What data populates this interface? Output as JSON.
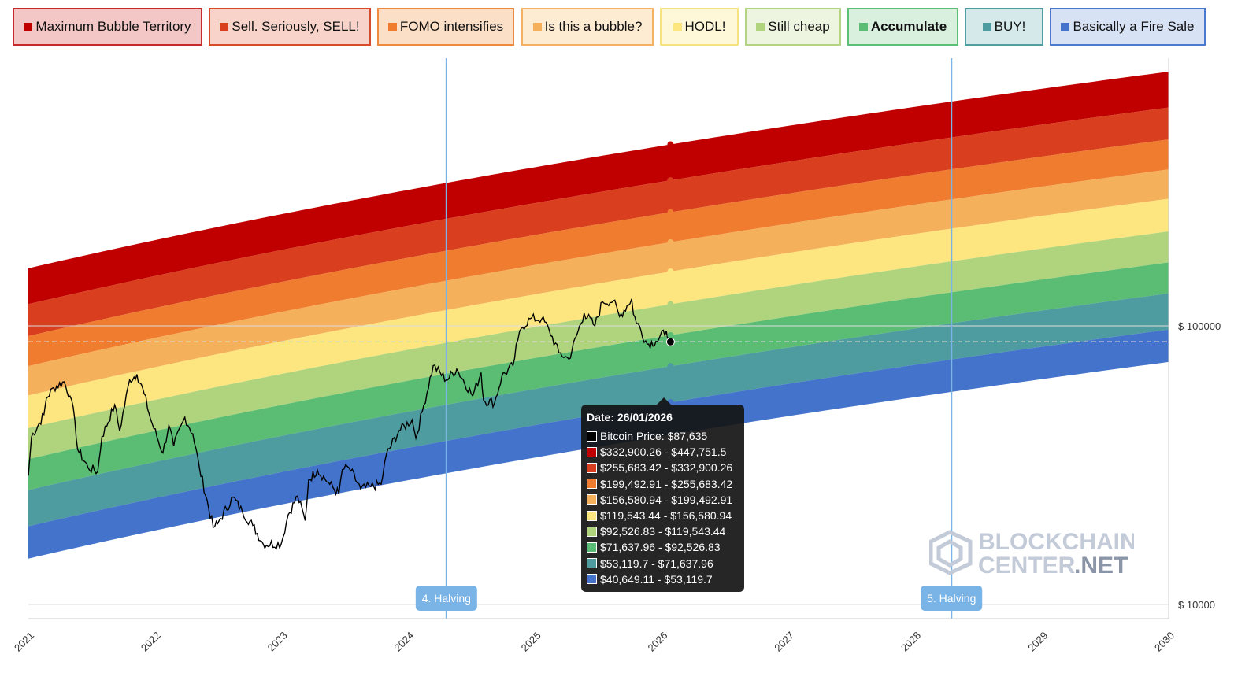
{
  "legend": [
    {
      "label": "Maximum Bubble Territory",
      "color": "#c00000",
      "border": "#c62a2a",
      "bg": "#f4c7c7",
      "bold": false
    },
    {
      "label": "Sell. Seriously, SELL!",
      "color": "#d93f1f",
      "border": "#d84a2c",
      "bg": "#f7d3c9",
      "bold": false
    },
    {
      "label": "FOMO intensifies",
      "color": "#ef7c2f",
      "border": "#ef8a3f",
      "bg": "#fbdfc6",
      "bold": false
    },
    {
      "label": "Is this a bubble?",
      "color": "#f5b05c",
      "border": "#f3b263",
      "bg": "#fdebd2",
      "bold": false
    },
    {
      "label": "HODL!",
      "color": "#fde67f",
      "border": "#f8e17f",
      "bg": "#fef8d8",
      "bold": false
    },
    {
      "label": "Still cheap",
      "color": "#b0d47e",
      "border": "#b3d483",
      "bg": "#edf5e0",
      "bold": false
    },
    {
      "label": "Accumulate",
      "color": "#5bbd73",
      "border": "#5cbf76",
      "bg": "#d9f0df",
      "bold": true
    },
    {
      "label": "BUY!",
      "color": "#4e9c9f",
      "border": "#529da0",
      "bg": "#d6e9ea",
      "bold": false
    },
    {
      "label": "Basically a Fire Sale",
      "color": "#4373cb",
      "border": "#4a79cd",
      "bg": "#d8e2f5",
      "bold": false
    }
  ],
  "chart_data": {
    "type": "line",
    "y_scale": "log",
    "ylim": [
      10000,
      500000
    ],
    "xlim": [
      "2021",
      "2030"
    ],
    "x_ticks": [
      "2021",
      "2022",
      "2023",
      "2024",
      "2025",
      "2026",
      "2027",
      "2028",
      "2029",
      "2030"
    ],
    "y_ticks": [
      {
        "value": 10000,
        "label": "$ 10000"
      },
      {
        "value": 100000,
        "label": "$ 100000"
      }
    ],
    "bands": [
      {
        "name": "Maximum Bubble Territory",
        "color": "#c00000"
      },
      {
        "name": "Sell. Seriously, SELL!",
        "color": "#d93f1f"
      },
      {
        "name": "FOMO intensifies",
        "color": "#ef7c2f"
      },
      {
        "name": "Is this a bubble?",
        "color": "#f5b05c"
      },
      {
        "name": "HODL!",
        "color": "#fde67f"
      },
      {
        "name": "Still cheap",
        "color": "#b0d47e"
      },
      {
        "name": "Accumulate",
        "color": "#5bbd73"
      },
      {
        "name": "BUY!",
        "color": "#4e9c9f"
      },
      {
        "name": "Basically a Fire Sale",
        "color": "#4373cb"
      }
    ],
    "band_boundaries_2026_01_26": [
      447751.5,
      332900.26,
      255683.42,
      199492.91,
      156580.94,
      119543.44,
      92526.83,
      71637.96,
      53119.7,
      40649.11
    ],
    "bitcoin_price": [
      [
        "2021-01-01",
        29000
      ],
      [
        "2021-01-10",
        40000
      ],
      [
        "2021-02-15",
        48000
      ],
      [
        "2021-02-22",
        55000
      ],
      [
        "2021-03-15",
        60000
      ],
      [
        "2021-04-14",
        63000
      ],
      [
        "2021-05-01",
        56000
      ],
      [
        "2021-05-15",
        46000
      ],
      [
        "2021-05-23",
        36000
      ],
      [
        "2021-06-22",
        31000
      ],
      [
        "2021-07-20",
        30000
      ],
      [
        "2021-08-01",
        40000
      ],
      [
        "2021-09-07",
        52000
      ],
      [
        "2021-09-21",
        42000
      ],
      [
        "2021-10-20",
        64000
      ],
      [
        "2021-11-10",
        67000
      ],
      [
        "2021-12-01",
        57000
      ],
      [
        "2021-12-20",
        46000
      ],
      [
        "2022-01-24",
        35000
      ],
      [
        "2022-02-10",
        44000
      ],
      [
        "2022-02-24",
        37000
      ],
      [
        "2022-03-28",
        47000
      ],
      [
        "2022-04-20",
        41000
      ],
      [
        "2022-05-09",
        31000
      ],
      [
        "2022-06-18",
        18900
      ],
      [
        "2022-07-01",
        19500
      ],
      [
        "2022-08-14",
        24300
      ],
      [
        "2022-09-10",
        21500
      ],
      [
        "2022-10-10",
        19200
      ],
      [
        "2022-11-09",
        16500
      ],
      [
        "2022-12-31",
        16500
      ],
      [
        "2023-01-20",
        21000
      ],
      [
        "2023-02-16",
        24500
      ],
      [
        "2023-03-10",
        20000
      ],
      [
        "2023-03-20",
        28000
      ],
      [
        "2023-04-14",
        30400
      ],
      [
        "2023-05-20",
        27000
      ],
      [
        "2023-06-15",
        25000
      ],
      [
        "2023-06-25",
        30500
      ],
      [
        "2023-07-14",
        31000
      ],
      [
        "2023-08-17",
        26000
      ],
      [
        "2023-09-15",
        26500
      ],
      [
        "2023-10-15",
        27000
      ],
      [
        "2023-10-30",
        34500
      ],
      [
        "2023-12-05",
        42000
      ],
      [
        "2024-01-12",
        46000
      ],
      [
        "2024-01-23",
        39500
      ],
      [
        "2024-02-15",
        52000
      ],
      [
        "2024-03-13",
        72000
      ],
      [
        "2024-04-20",
        64000
      ],
      [
        "2024-05-20",
        70000
      ],
      [
        "2024-07-05",
        56000
      ],
      [
        "2024-07-29",
        68000
      ],
      [
        "2024-08-05",
        54000
      ],
      [
        "2024-09-06",
        53000
      ],
      [
        "2024-09-27",
        66000
      ],
      [
        "2024-10-29",
        72000
      ],
      [
        "2024-11-12",
        89000
      ],
      [
        "2024-11-22",
        98000
      ],
      [
        "2024-12-17",
        106000
      ],
      [
        "2025-01-20",
        106000
      ],
      [
        "2025-02-10",
        97000
      ],
      [
        "2025-03-10",
        80000
      ],
      [
        "2025-04-08",
        76000
      ],
      [
        "2025-05-22",
        111000
      ],
      [
        "2025-06-22",
        100000
      ],
      [
        "2025-07-14",
        122000
      ],
      [
        "2025-08-14",
        123000
      ],
      [
        "2025-09-01",
        108000
      ],
      [
        "2025-10-06",
        125000
      ],
      [
        "2025-10-11",
        110000
      ],
      [
        "2025-11-20",
        86000
      ],
      [
        "2025-12-15",
        88000
      ],
      [
        "2026-01-14",
        96000
      ],
      [
        "2026-01-26",
        87635
      ]
    ],
    "current_price_line": 87635,
    "annotations": [
      {
        "label": "4. Halving",
        "date": "2024-04-20"
      },
      {
        "label": "5. Halving",
        "date": "2028-04-15"
      }
    ]
  },
  "tooltip": {
    "title": "Date: 26/01/2026",
    "rows": [
      {
        "text": "Bitcoin Price: $87,635",
        "color": "#000000"
      },
      {
        "text": "$332,900.26 - $447,751.5",
        "color": "#c00000"
      },
      {
        "text": "$255,683.42 - $332,900.26",
        "color": "#d93f1f"
      },
      {
        "text": "$199,492.91 - $255,683.42",
        "color": "#ef7c2f"
      },
      {
        "text": "$156,580.94 - $199,492.91",
        "color": "#f5b05c"
      },
      {
        "text": "$119,543.44 - $156,580.94",
        "color": "#fde67f"
      },
      {
        "text": "$92,526.83 - $119,543.44",
        "color": "#b0d47e"
      },
      {
        "text": "$71,637.96 - $92,526.83",
        "color": "#5bbd73"
      },
      {
        "text": "$53,119.7 - $71,637.96",
        "color": "#4e9c9f"
      },
      {
        "text": "$40,649.11 - $53,119.7",
        "color": "#4373cb"
      }
    ]
  },
  "watermark": {
    "line1": "BLOCKCHAIN",
    "line2": "CENTER",
    "line3": ".NET"
  }
}
